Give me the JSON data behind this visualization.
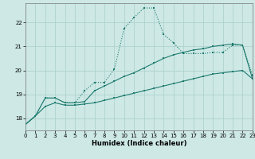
{
  "xlabel": "Humidex (Indice chaleur)",
  "background_color": "#cde8e5",
  "grid_color": "#aacfcc",
  "line_color": "#1e7b6e",
  "x_values": [
    0,
    1,
    2,
    3,
    4,
    5,
    6,
    7,
    8,
    9,
    10,
    11,
    12,
    13,
    14,
    15,
    16,
    17,
    18,
    19,
    20,
    21,
    22,
    23
  ],
  "y_dotted": [
    17.75,
    18.1,
    18.85,
    18.85,
    18.65,
    18.65,
    19.15,
    19.5,
    19.5,
    20.05,
    21.75,
    22.2,
    22.6,
    22.6,
    21.5,
    21.15,
    20.7,
    20.7,
    20.7,
    20.75,
    20.75,
    21.05,
    21.05,
    19.8
  ],
  "y_mid": [
    17.75,
    18.1,
    18.85,
    18.85,
    18.65,
    18.65,
    18.7,
    19.15,
    19.35,
    19.55,
    19.75,
    19.9,
    20.1,
    20.3,
    20.5,
    20.65,
    20.75,
    20.85,
    20.9,
    21.0,
    21.05,
    21.1,
    21.05,
    19.65
  ],
  "y_low": [
    17.75,
    18.1,
    18.5,
    18.65,
    18.55,
    18.55,
    18.6,
    18.65,
    18.75,
    18.85,
    18.95,
    19.05,
    19.15,
    19.25,
    19.35,
    19.45,
    19.55,
    19.65,
    19.75,
    19.85,
    19.9,
    19.95,
    20.0,
    19.65
  ],
  "ylim": [
    17.5,
    22.8
  ],
  "xlim": [
    0,
    23
  ],
  "yticks": [
    18,
    19,
    20,
    21,
    22
  ],
  "xticks": [
    0,
    1,
    2,
    3,
    4,
    5,
    6,
    7,
    8,
    9,
    10,
    11,
    12,
    13,
    14,
    15,
    16,
    17,
    18,
    19,
    20,
    21,
    22,
    23
  ]
}
